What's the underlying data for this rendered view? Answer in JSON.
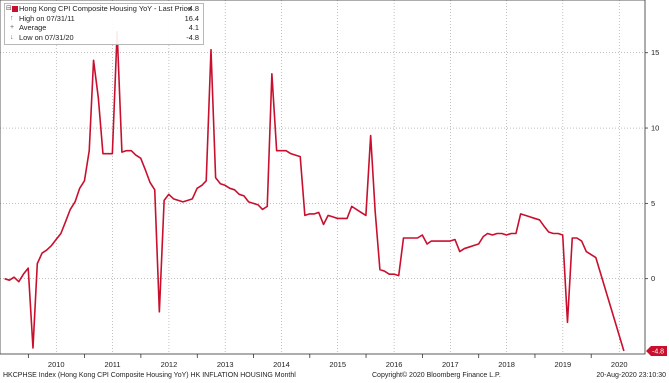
{
  "chart_data": {
    "type": "line",
    "series": [
      {
        "name": "Hong Kong CPI Composite Housing YoY - Last Price",
        "color": "#c8102e",
        "points": [
          [
            "2009-07-31",
            0.0
          ],
          [
            "2009-08-31",
            -0.1
          ],
          [
            "2009-09-30",
            0.1
          ],
          [
            "2009-10-31",
            -0.2
          ],
          [
            "2009-11-30",
            0.3
          ],
          [
            "2009-12-31",
            0.7
          ],
          [
            "2010-01-31",
            -4.6
          ],
          [
            "2010-02-28",
            1.0
          ],
          [
            "2010-03-31",
            1.7
          ],
          [
            "2010-04-30",
            1.9
          ],
          [
            "2010-05-31",
            2.2
          ],
          [
            "2010-06-30",
            2.6
          ],
          [
            "2010-07-31",
            3.0
          ],
          [
            "2010-08-31",
            3.8
          ],
          [
            "2010-09-30",
            4.6
          ],
          [
            "2010-10-31",
            5.1
          ],
          [
            "2010-11-30",
            6.0
          ],
          [
            "2010-12-31",
            6.5
          ],
          [
            "2011-01-31",
            8.5
          ],
          [
            "2011-02-28",
            14.5
          ],
          [
            "2011-03-31",
            12.0
          ],
          [
            "2011-04-30",
            8.3
          ],
          [
            "2011-05-31",
            8.3
          ],
          [
            "2011-06-30",
            8.3
          ],
          [
            "2011-07-31",
            16.4
          ],
          [
            "2011-08-31",
            8.4
          ],
          [
            "2011-09-30",
            8.5
          ],
          [
            "2011-10-31",
            8.5
          ],
          [
            "2011-11-30",
            8.2
          ],
          [
            "2011-12-31",
            8.0
          ],
          [
            "2012-01-31",
            7.2
          ],
          [
            "2012-02-29",
            6.4
          ],
          [
            "2012-03-31",
            5.9
          ],
          [
            "2012-04-30",
            -2.2
          ],
          [
            "2012-05-31",
            5.2
          ],
          [
            "2012-06-30",
            5.6
          ],
          [
            "2012-07-31",
            5.3
          ],
          [
            "2012-08-31",
            5.2
          ],
          [
            "2012-09-30",
            5.1
          ],
          [
            "2012-10-31",
            5.2
          ],
          [
            "2012-11-30",
            5.3
          ],
          [
            "2012-12-31",
            6.0
          ],
          [
            "2013-01-31",
            6.2
          ],
          [
            "2013-02-28",
            6.5
          ],
          [
            "2013-03-31",
            15.2
          ],
          [
            "2013-04-30",
            6.7
          ],
          [
            "2013-05-31",
            6.3
          ],
          [
            "2013-06-30",
            6.2
          ],
          [
            "2013-07-31",
            6.0
          ],
          [
            "2013-08-31",
            5.9
          ],
          [
            "2013-09-30",
            5.6
          ],
          [
            "2013-10-31",
            5.5
          ],
          [
            "2013-11-30",
            5.1
          ],
          [
            "2013-12-31",
            5.0
          ],
          [
            "2014-01-31",
            4.9
          ],
          [
            "2014-02-28",
            4.6
          ],
          [
            "2014-03-31",
            4.8
          ],
          [
            "2014-04-30",
            13.6
          ],
          [
            "2014-05-31",
            8.5
          ],
          [
            "2014-06-30",
            8.5
          ],
          [
            "2014-07-31",
            8.5
          ],
          [
            "2014-08-31",
            8.3
          ],
          [
            "2014-09-30",
            8.2
          ],
          [
            "2014-10-31",
            8.1
          ],
          [
            "2014-11-30",
            4.2
          ],
          [
            "2014-12-31",
            4.3
          ],
          [
            "2015-01-31",
            4.3
          ],
          [
            "2015-02-28",
            4.4
          ],
          [
            "2015-03-31",
            3.6
          ],
          [
            "2015-04-30",
            4.2
          ],
          [
            "2015-05-31",
            4.1
          ],
          [
            "2015-06-30",
            4.0
          ],
          [
            "2015-07-31",
            4.0
          ],
          [
            "2015-08-31",
            4.0
          ],
          [
            "2015-09-30",
            4.8
          ],
          [
            "2015-10-31",
            4.6
          ],
          [
            "2015-11-30",
            4.4
          ],
          [
            "2015-12-31",
            4.2
          ],
          [
            "2016-01-31",
            9.5
          ],
          [
            "2016-02-29",
            4.5
          ],
          [
            "2016-03-31",
            0.6
          ],
          [
            "2016-04-30",
            0.5
          ],
          [
            "2016-05-31",
            0.3
          ],
          [
            "2016-06-30",
            0.3
          ],
          [
            "2016-07-31",
            0.2
          ],
          [
            "2016-08-31",
            2.7
          ],
          [
            "2016-09-30",
            2.7
          ],
          [
            "2016-10-31",
            2.7
          ],
          [
            "2016-11-30",
            2.7
          ],
          [
            "2016-12-31",
            2.9
          ],
          [
            "2017-01-31",
            2.3
          ],
          [
            "2017-02-28",
            2.5
          ],
          [
            "2017-03-31",
            2.5
          ],
          [
            "2017-04-30",
            2.5
          ],
          [
            "2017-05-31",
            2.5
          ],
          [
            "2017-06-30",
            2.5
          ],
          [
            "2017-07-31",
            2.6
          ],
          [
            "2017-08-31",
            1.8
          ],
          [
            "2017-09-30",
            2.0
          ],
          [
            "2017-10-31",
            2.1
          ],
          [
            "2017-11-30",
            2.2
          ],
          [
            "2017-12-31",
            2.3
          ],
          [
            "2018-01-31",
            2.8
          ],
          [
            "2018-02-28",
            3.0
          ],
          [
            "2018-03-31",
            2.9
          ],
          [
            "2018-04-30",
            3.0
          ],
          [
            "2018-05-31",
            3.0
          ],
          [
            "2018-06-30",
            2.9
          ],
          [
            "2018-07-31",
            3.0
          ],
          [
            "2018-08-31",
            3.0
          ],
          [
            "2018-09-30",
            4.3
          ],
          [
            "2018-10-31",
            4.2
          ],
          [
            "2018-11-30",
            4.1
          ],
          [
            "2018-12-31",
            4.0
          ],
          [
            "2019-01-31",
            3.9
          ],
          [
            "2019-02-28",
            3.5
          ],
          [
            "2019-03-31",
            3.1
          ],
          [
            "2019-04-30",
            3.0
          ],
          [
            "2019-05-31",
            3.0
          ],
          [
            "2019-06-30",
            2.9
          ],
          [
            "2019-07-31",
            -2.9
          ],
          [
            "2019-08-31",
            2.7
          ],
          [
            "2019-09-30",
            2.7
          ],
          [
            "2019-10-31",
            2.5
          ],
          [
            "2019-11-30",
            1.8
          ],
          [
            "2019-12-31",
            1.6
          ],
          [
            "2020-01-31",
            1.4
          ],
          [
            "2020-07-31",
            -4.8
          ]
        ]
      }
    ],
    "x_range": [
      "2009-07-01",
      "2020-12-15"
    ],
    "ylim": [
      -5,
      18.5
    ],
    "y_ticks": [
      0,
      5,
      10,
      15
    ],
    "y_tick_labels": [
      "0",
      "5",
      "10",
      "15"
    ],
    "x_ticks": [
      "2010-07-01",
      "2011-07-01",
      "2012-07-01",
      "2013-07-01",
      "2014-07-01",
      "2015-07-01",
      "2016-07-01",
      "2017-07-01",
      "2018-07-01",
      "2019-07-01",
      "2020-07-01"
    ],
    "x_tick_labels": [
      "2010",
      "2011",
      "2012",
      "2013",
      "2014",
      "2015",
      "2016",
      "2017",
      "2018",
      "2019",
      "2020"
    ],
    "grid": "dotted-both",
    "y_axis_side": "right",
    "legend": {
      "placement": "top-left",
      "rows": [
        {
          "label": "Hong Kong CPI Composite Housing YoY - Last Price",
          "value": "-4.8"
        },
        {
          "label": "High on 07/31/11",
          "value": "16.4"
        },
        {
          "label": "Average",
          "value": "4.1"
        },
        {
          "label": "Low on 07/31/20",
          "value": "-4.8"
        }
      ]
    },
    "last_value_tag": {
      "text": "-4.8",
      "value": -4.8,
      "color": "#c8102e"
    }
  },
  "footer": {
    "left": "HKCPHSE Index (Hong Kong CPI Composite Housing YoY) HK INFLATION HOUSING  Monthl",
    "center": "Copyright© 2020 Bloomberg Finance L.P.",
    "right": "20-Aug-2020 23:10:30"
  },
  "colors": {
    "line": "#c8102e",
    "grid": "#9a9a9a",
    "axis": "#333333"
  }
}
